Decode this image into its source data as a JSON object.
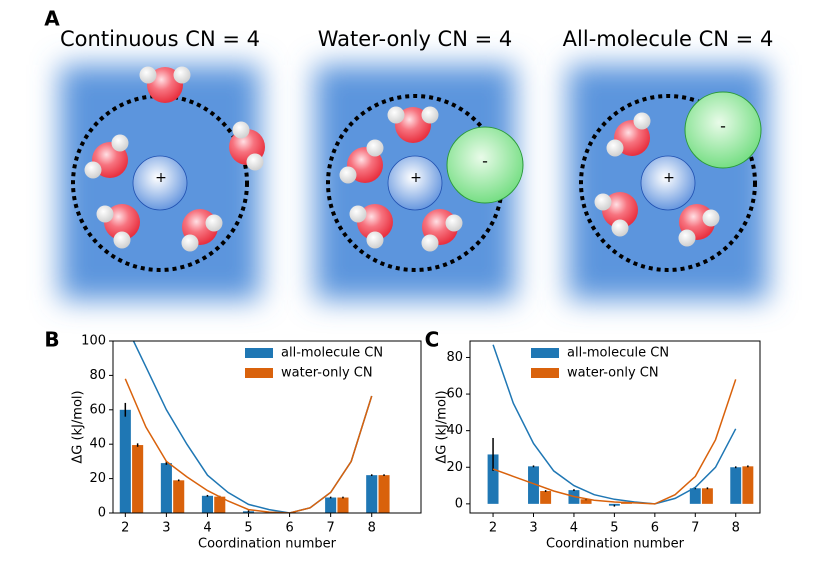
{
  "panel_a": {
    "label": "A",
    "panels": [
      {
        "title": "Continuous CN = 4",
        "cation": "+"
      },
      {
        "title": "Water-only CN = 4",
        "cation": "+",
        "anion": "-"
      },
      {
        "title": "All-molecule CN = 4",
        "cation": "+",
        "anion": "-"
      }
    ]
  },
  "chart_data": [
    {
      "type": "bar",
      "panel": "B",
      "xlabel": "Coordination number",
      "ylabel": "ΔG (kJ/mol)",
      "categories": [
        2,
        3,
        4,
        5,
        6,
        7,
        8
      ],
      "series": [
        {
          "name": "all-molecule CN",
          "color": "#1f77b4",
          "values": [
            60,
            29,
            10,
            1,
            0,
            9,
            22
          ],
          "errors": [
            4,
            1,
            0.5,
            0.5,
            null,
            0.5,
            0.5
          ]
        },
        {
          "name": "water-only CN",
          "color": "#d9620c",
          "values": [
            39.5,
            19,
            9.5,
            0.3,
            0,
            9,
            22
          ],
          "errors": [
            1,
            0.5,
            0.5,
            null,
            null,
            0.5,
            0.5
          ]
        }
      ],
      "curves": [
        {
          "color": "#1f77b4",
          "x": [
            2.2,
            2.5,
            3,
            3.5,
            4,
            4.5,
            5,
            5.5,
            6,
            6.5,
            7,
            7.5,
            8
          ],
          "values": [
            100,
            85,
            60,
            40,
            22,
            12,
            5,
            2,
            0,
            3,
            12,
            30,
            68
          ]
        },
        {
          "color": "#d9620c",
          "x": [
            2,
            2.5,
            3,
            3.5,
            4,
            4.5,
            5,
            5.5,
            6,
            6.5,
            7,
            7.5,
            8
          ],
          "values": [
            78,
            50,
            30,
            21,
            13,
            7,
            2,
            0.5,
            0,
            3,
            12,
            30,
            68
          ]
        }
      ],
      "xlim": [
        1.7,
        9.2
      ],
      "ylim": [
        0,
        100
      ],
      "xticks": [
        2,
        3,
        4,
        5,
        6,
        7,
        8
      ],
      "yticks": [
        0,
        20,
        40,
        60,
        80,
        100
      ],
      "legend": "upper right"
    },
    {
      "type": "bar",
      "panel": "C",
      "xlabel": "Coordination number",
      "ylabel": "ΔG (kJ/mol)",
      "categories": [
        2,
        3,
        4,
        5,
        6,
        7,
        8
      ],
      "series": [
        {
          "name": "all-molecule CN",
          "color": "#1f77b4",
          "values": [
            27,
            20.5,
            7.5,
            -1,
            0,
            8.5,
            20
          ],
          "errors": [
            9,
            0.5,
            0.5,
            0.5,
            null,
            0.5,
            0.5
          ]
        },
        {
          "name": "water-only CN",
          "color": "#d9620c",
          "values": [
            null,
            7,
            2.5,
            0.5,
            0,
            8.5,
            20.5
          ],
          "errors": [
            null,
            0.5,
            0.5,
            null,
            null,
            0.5,
            0.5
          ]
        }
      ],
      "curves": [
        {
          "color": "#1f77b4",
          "x": [
            2,
            2.5,
            3,
            3.5,
            4,
            4.5,
            5,
            5.5,
            6,
            6.5,
            7,
            7.5,
            8
          ],
          "values": [
            87,
            55,
            33,
            18,
            10,
            5,
            2.5,
            1,
            0,
            3,
            9,
            20,
            41
          ]
        },
        {
          "color": "#d9620c",
          "x": [
            2,
            2.5,
            3,
            3.5,
            4,
            4.5,
            5,
            5.5,
            6,
            6.5,
            7,
            7.5,
            8
          ],
          "values": [
            19,
            15,
            11,
            7,
            4,
            2,
            1,
            0.5,
            0,
            5,
            15,
            35,
            68
          ]
        }
      ],
      "xlim": [
        1.43,
        8.6
      ],
      "ylim": [
        -5,
        89
      ],
      "xticks": [
        2,
        3,
        4,
        5,
        6,
        7,
        8
      ],
      "yticks": [
        0,
        20,
        40,
        60,
        80
      ],
      "legend": "upper center"
    }
  ]
}
